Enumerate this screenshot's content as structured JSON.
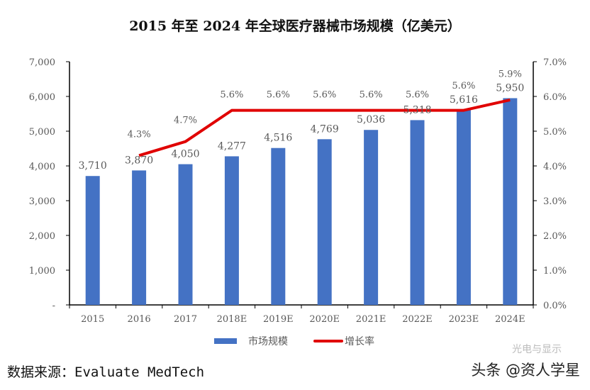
{
  "chart_data": {
    "type": "bar+line",
    "title": "2015 年至 2024 年全球医疗器械市场规模（亿美元）",
    "categories": [
      "2015",
      "2016",
      "2017",
      "2018E",
      "2019E",
      "2020E",
      "2021E",
      "2022E",
      "2023E",
      "2024E"
    ],
    "series": [
      {
        "name": "市场规模",
        "type": "bar",
        "axis": "left",
        "color": "#4472C4",
        "values": [
          3710,
          3870,
          4050,
          4277,
          4516,
          4769,
          5036,
          5318,
          5616,
          5950
        ],
        "labels": [
          "3,710",
          "3,870",
          "4,050",
          "4,277",
          "4,516",
          "4,769",
          "5,036",
          "5,318",
          "5,616",
          "5,950"
        ]
      },
      {
        "name": "增长率",
        "type": "line",
        "axis": "right",
        "color": "#E00000",
        "values": [
          null,
          4.3,
          4.7,
          5.6,
          5.6,
          5.6,
          5.6,
          5.6,
          5.6,
          5.9
        ],
        "labels": [
          "",
          "4.3%",
          "4.7%",
          "5.6%",
          "5.6%",
          "5.6%",
          "5.6%",
          "5.6%",
          "5.6%",
          "5.9%"
        ]
      }
    ],
    "y_left": {
      "range": [
        0,
        7000
      ],
      "ticks": [
        "-",
        "1,000",
        "2,000",
        "3,000",
        "4,000",
        "5,000",
        "6,000",
        "7,000"
      ]
    },
    "y_right": {
      "range": [
        0,
        7
      ],
      "ticks": [
        "0.0%",
        "1.0%",
        "2.0%",
        "3.0%",
        "4.0%",
        "5.0%",
        "6.0%",
        "7.0%"
      ]
    },
    "grid": false,
    "legend": "bottom"
  },
  "source": "数据来源：Evaluate MedTech",
  "watermark": "头条 @资人学星",
  "watermark_bg": "光电与显示"
}
